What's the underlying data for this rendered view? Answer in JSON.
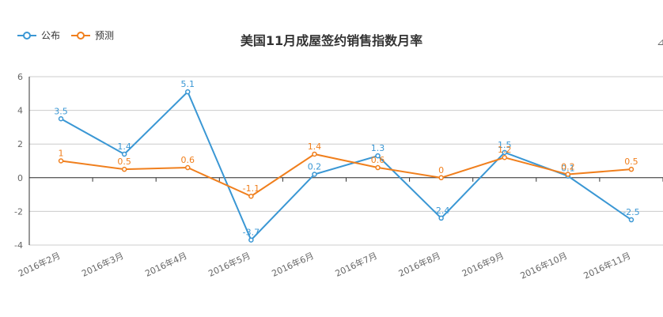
{
  "chart_data": {
    "type": "line",
    "title": "美国11月成屋签约销售指数月率",
    "categories": [
      "2016年2月",
      "2016年3月",
      "2016年4月",
      "2016年5月",
      "2016年6月",
      "2016年7月",
      "2016年8月",
      "2016年9月",
      "2016年10月",
      "2016年11月"
    ],
    "series": [
      {
        "name": "公布",
        "color": "#3a97d4",
        "values": [
          3.5,
          1.4,
          5.1,
          -3.7,
          0.2,
          1.3,
          -2.4,
          1.5,
          0.1,
          -2.5
        ]
      },
      {
        "name": "预测",
        "color": "#f07f1d",
        "values": [
          1,
          0.5,
          0.6,
          -1.1,
          1.4,
          0.6,
          0,
          1.2,
          0.2,
          0.5
        ]
      }
    ],
    "ylim": [
      -4,
      6
    ],
    "yticks": [
      -4,
      -2,
      0,
      2,
      4,
      6
    ],
    "grid": true,
    "legend": "top-left"
  }
}
